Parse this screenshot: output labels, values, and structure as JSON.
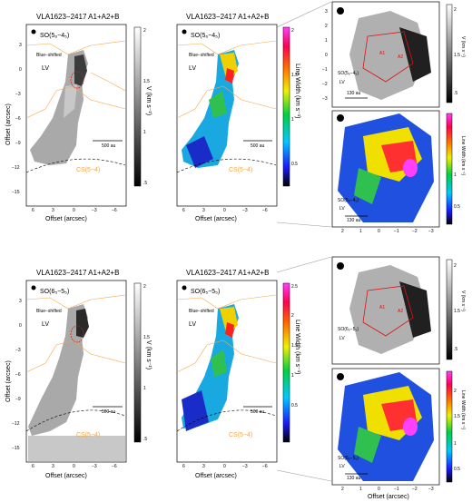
{
  "figure": {
    "panels": [
      {
        "id": "top-left",
        "title": "VLA1623−2417 A1+A2+B",
        "line": "SO(5₆−4₅)",
        "kinematic_label": "Blue−shifted",
        "component": "LV",
        "scalebar": "500 au",
        "cs_label": "CS(5−4)",
        "colorbar_label": "V (km s⁻¹)",
        "colorbar_ticks": [
          "2",
          "1.5",
          "1",
          ".5"
        ],
        "xlabel": "Offset (arcsec)",
        "ylabel": "Offset (arcsec)",
        "x_ticks": [
          "6",
          "3",
          "0",
          "−3",
          "−6"
        ],
        "y_ticks": [
          "3",
          "0",
          "−3",
          "−6",
          "−9",
          "−12",
          "−15"
        ]
      },
      {
        "id": "top-middle",
        "title": "VLA1623−2417 A1+A2+B",
        "line": "SO(5₆−4₅)",
        "kinematic_label": "Blue−shifted",
        "component": "LV",
        "scalebar": "500 au",
        "cs_label": "CS(5−4)",
        "colorbar_label": "Line Width (km s⁻¹)",
        "colorbar_ticks": [
          "2",
          "1.5",
          "1",
          "0.5"
        ],
        "xlabel": "Offset (arcsec)",
        "x_ticks": [
          "6",
          "3",
          "0",
          "−3",
          "−6"
        ]
      },
      {
        "id": "top-right-upper",
        "line": "SO(5₆−4₅)",
        "component": "LV",
        "sources": [
          "A1",
          "A2"
        ],
        "scalebar": "130 au",
        "colorbar_label": "V (km s⁻¹)",
        "colorbar_ticks": [
          "2",
          "1.5",
          "1",
          ".5"
        ],
        "y_ticks": [
          "3",
          "2",
          "1",
          "0",
          "−1",
          "−2",
          "−3"
        ]
      },
      {
        "id": "top-right-lower",
        "line": "SO(5₆−4₅)",
        "component": "LV",
        "scalebar": "130 au",
        "colorbar_label": "Line Width (km s⁻¹)",
        "colorbar_ticks": [
          "1",
          "0.5"
        ],
        "x_ticks": [
          "2",
          "1",
          "0",
          "−1",
          "−2",
          "−3"
        ]
      },
      {
        "id": "bottom-left",
        "title": "VLA1623−2417 A1+A2+B",
        "line": "SO(6₅−5₅)",
        "kinematic_label": "Blue−shifted",
        "component": "LV",
        "scalebar": "500 au",
        "cs_label": "CS(5−4)",
        "colorbar_label": "V (km s⁻¹)",
        "colorbar_ticks": [
          "2",
          "1.5",
          "1",
          ".5"
        ],
        "xlabel": "Offset (arcsec)",
        "ylabel": "Offset (arcsec)",
        "x_ticks": [
          "6",
          "3",
          "0",
          "−3",
          "−6"
        ],
        "y_ticks": [
          "3",
          "0",
          "−3",
          "−6",
          "−9",
          "−12",
          "−15"
        ]
      },
      {
        "id": "bottom-middle",
        "title": "VLA1623−2417 A1+A2+B",
        "line": "SO(6₅−5₅)",
        "kinematic_label": "Blue−shifted",
        "component": "LV",
        "scalebar": "500 au",
        "cs_label": "CS(5−4)",
        "colorbar_label": "Line Width (km s⁻¹)",
        "colorbar_ticks": [
          "2.5",
          "2",
          "1.5",
          "1",
          "0.5"
        ],
        "xlabel": "Offset (arcsec)",
        "x_ticks": [
          "6",
          "3",
          "0",
          "−3",
          "−6"
        ]
      },
      {
        "id": "bottom-right-upper",
        "line": "SO(6₅−5₅)",
        "component": "LV",
        "sources": [
          "A1",
          "A2"
        ],
        "colorbar_label": "V (km s⁻¹)",
        "colorbar_ticks": [
          "2",
          "1.5",
          "1",
          ".5"
        ]
      },
      {
        "id": "bottom-right-lower",
        "line": "SO(6₅−5₅)",
        "component": "LV",
        "scalebar": "130 au",
        "colorbar_label": "Line Width (km s⁻¹)",
        "colorbar_ticks": [
          "2",
          "1.5",
          "1",
          "0.5"
        ],
        "xlabel": "Offset (arcsec)",
        "x_ticks": [
          "2",
          "1",
          "0",
          "−1",
          "−2",
          "−3"
        ]
      }
    ]
  }
}
